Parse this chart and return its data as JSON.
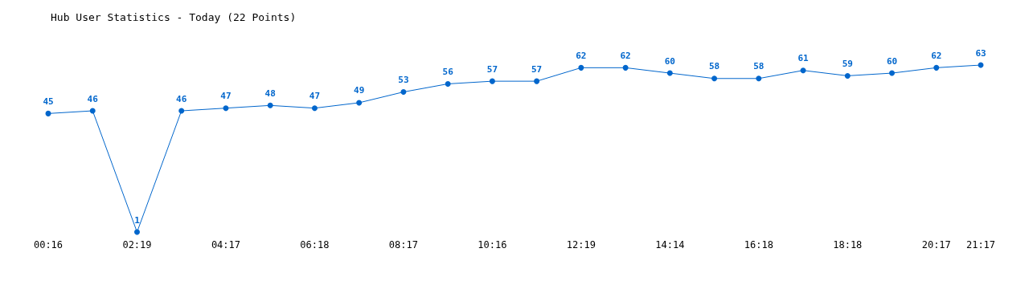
{
  "chart_data": {
    "type": "line",
    "title": "Hub User Statistics - Today (22 Points)",
    "categories": [
      "00:16",
      null,
      "02:19",
      null,
      "04:17",
      null,
      "06:18",
      null,
      "08:17",
      null,
      "10:16",
      null,
      "12:19",
      null,
      "14:14",
      null,
      "16:18",
      null,
      "18:18",
      null,
      "20:17",
      "21:17"
    ],
    "values": [
      45,
      46,
      1,
      46,
      47,
      48,
      47,
      49,
      53,
      56,
      57,
      57,
      62,
      62,
      60,
      58,
      58,
      61,
      59,
      60,
      62,
      63
    ],
    "color": "#0066cc",
    "marker": "circle",
    "data_labels": true,
    "tick_labels": "x"
  }
}
